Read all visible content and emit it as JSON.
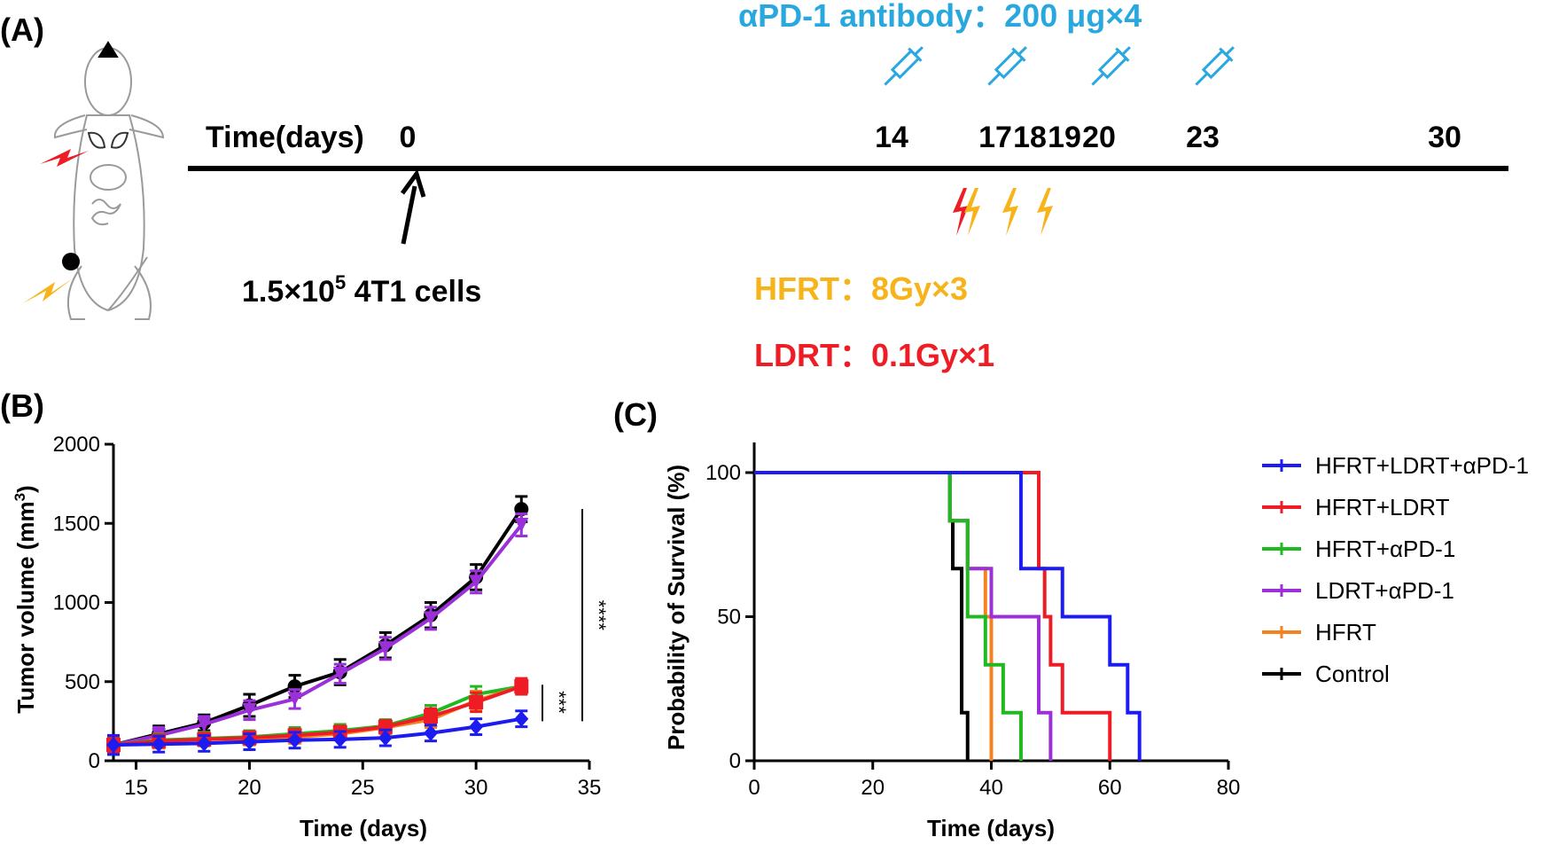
{
  "panels": {
    "a": "(A)",
    "b": "(B)",
    "c": "(C)"
  },
  "schedule": {
    "antibody_title": "αPD-1 antibody：200 μg×4",
    "axis_label": "Time(days)",
    "days": [
      "0",
      "14",
      "17",
      "18",
      "19",
      "20",
      "23",
      "30"
    ],
    "injection_days": [
      14,
      17,
      20,
      23
    ],
    "ldrt_days": [
      17
    ],
    "hfrt_days": [
      18,
      19,
      20
    ],
    "cells_label_pre": "1.5×10",
    "cells_label_sup": "5",
    "cells_label_post": " 4T1 cells",
    "hfrt_label": "HFRT：8Gy×3",
    "ldrt_label": "LDRT：0.1Gy×1",
    "colors": {
      "antibody": "#29a8e0",
      "hfrt": "#f6b41a",
      "ldrt": "#ee1c24"
    }
  },
  "chart_data": [
    {
      "type": "line",
      "title": "",
      "xlabel": "Time (days)",
      "ylabel": "Tumor volume (mm3)",
      "ylabel_pre": "Tumor volume (mm",
      "ylabel_sup": "3",
      "ylabel_post": ")",
      "xlim": [
        14,
        35
      ],
      "ylim": [
        0,
        2000
      ],
      "xticks": [
        "15",
        "20",
        "25",
        "30",
        "35"
      ],
      "yticks": [
        "0",
        "500",
        "1000",
        "1500",
        "2000"
      ],
      "x": [
        14,
        16,
        18,
        20,
        22,
        24,
        26,
        28,
        30,
        32
      ],
      "series": [
        {
          "name": "Control",
          "color": "#000000",
          "marker": "circle",
          "values": [
            100,
            170,
            240,
            350,
            470,
            560,
            730,
            920,
            1160,
            1590
          ],
          "errors": [
            60,
            50,
            50,
            70,
            70,
            80,
            80,
            80,
            80,
            80
          ]
        },
        {
          "name": "LDRT+αPD-1",
          "color": "#9b30d9",
          "marker": "triangle-down",
          "values": [
            100,
            160,
            230,
            320,
            390,
            550,
            710,
            900,
            1130,
            1490
          ],
          "errors": [
            50,
            50,
            50,
            60,
            60,
            60,
            70,
            70,
            70,
            70
          ]
        },
        {
          "name": "HFRT+αPD-1",
          "color": "#22b822",
          "marker": "triangle",
          "values": [
            100,
            130,
            140,
            150,
            170,
            190,
            220,
            300,
            420,
            470
          ],
          "errors": [
            50,
            40,
            40,
            40,
            40,
            40,
            40,
            50,
            50,
            40
          ]
        },
        {
          "name": "HFRT",
          "color": "#f58220",
          "marker": "triangle",
          "values": [
            100,
            120,
            135,
            140,
            150,
            170,
            210,
            260,
            380,
            470
          ],
          "errors": [
            50,
            40,
            40,
            40,
            40,
            40,
            40,
            50,
            60,
            50
          ]
        },
        {
          "name": "HFRT+LDRT",
          "color": "#ee1c24",
          "marker": "square",
          "values": [
            100,
            125,
            135,
            145,
            160,
            180,
            215,
            280,
            370,
            470
          ],
          "errors": [
            50,
            40,
            40,
            40,
            40,
            40,
            40,
            50,
            60,
            50
          ]
        },
        {
          "name": "HFRT+LDRT+αPD-1",
          "color": "#1c1cf0",
          "marker": "diamond",
          "values": [
            100,
            105,
            110,
            120,
            130,
            135,
            145,
            175,
            215,
            265
          ],
          "errors": [
            60,
            50,
            50,
            50,
            50,
            50,
            50,
            50,
            50,
            50
          ]
        }
      ],
      "significance": [
        {
          "label": "****",
          "from": "Control",
          "to": "HFRT+LDRT+αPD-1"
        },
        {
          "label": "***",
          "from": "HFRT+LDRT",
          "to": "HFRT+LDRT+αPD-1"
        }
      ]
    },
    {
      "type": "step",
      "title": "",
      "xlabel": "Time (days)",
      "ylabel": "Probability of Survival (%)",
      "xlim": [
        0,
        80
      ],
      "ylim": [
        0,
        110
      ],
      "xticks": [
        "0",
        "20",
        "40",
        "60",
        "80"
      ],
      "yticks": [
        "0",
        "50",
        "100"
      ],
      "legend_position": "right",
      "series": [
        {
          "name": "HFRT+LDRT+αPD-1",
          "color": "#1c1cf0",
          "steps": [
            [
              0,
              100
            ],
            [
              45,
              66.7
            ],
            [
              52,
              50
            ],
            [
              60,
              33.3
            ],
            [
              63,
              16.7
            ],
            [
              65,
              0
            ]
          ]
        },
        {
          "name": "HFRT+LDRT",
          "color": "#ee1c24",
          "steps": [
            [
              0,
              100
            ],
            [
              48,
              66.7
            ],
            [
              49,
              50
            ],
            [
              50,
              33.3
            ],
            [
              52,
              16.7
            ],
            [
              60,
              0
            ]
          ]
        },
        {
          "name": "HFRT+αPD-1",
          "color": "#22b822",
          "steps": [
            [
              0,
              100
            ],
            [
              33,
              83.3
            ],
            [
              36,
              50
            ],
            [
              39,
              33.3
            ],
            [
              42,
              16.7
            ],
            [
              45,
              0
            ]
          ]
        },
        {
          "name": "LDRT+αPD-1",
          "color": "#9b30d9",
          "steps": [
            [
              0,
              100
            ],
            [
              33,
              83.3
            ],
            [
              36,
              66.7
            ],
            [
              40,
              50
            ],
            [
              48,
              16.7
            ],
            [
              50,
              0
            ]
          ]
        },
        {
          "name": "HFRT",
          "color": "#f58220",
          "steps": [
            [
              0,
              100
            ],
            [
              33,
              83.3
            ],
            [
              36,
              66.7
            ],
            [
              39,
              50
            ],
            [
              40,
              0
            ]
          ]
        },
        {
          "name": "Control",
          "color": "#000000",
          "steps": [
            [
              0,
              100
            ],
            [
              33,
              83.3
            ],
            [
              33.5,
              66.7
            ],
            [
              35,
              16.7
            ],
            [
              36,
              0
            ]
          ]
        }
      ]
    }
  ]
}
